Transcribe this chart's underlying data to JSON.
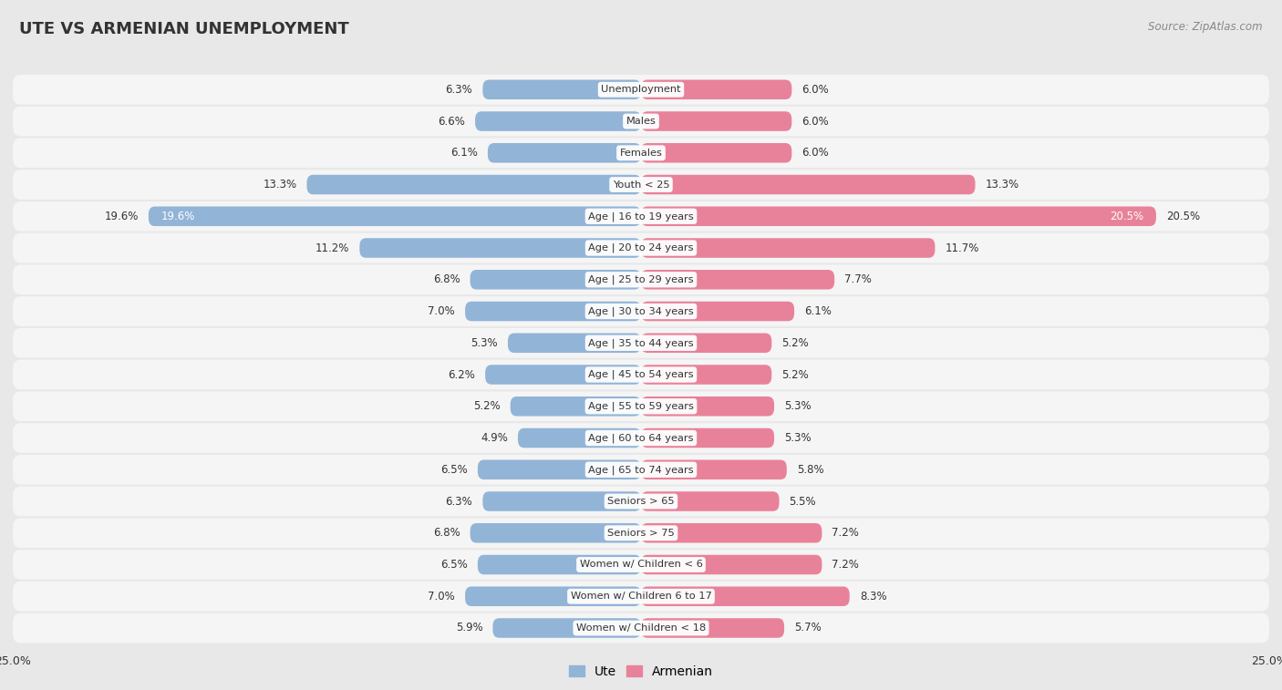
{
  "title": "UTE VS ARMENIAN UNEMPLOYMENT",
  "source": "Source: ZipAtlas.com",
  "categories": [
    "Unemployment",
    "Males",
    "Females",
    "Youth < 25",
    "Age | 16 to 19 years",
    "Age | 20 to 24 years",
    "Age | 25 to 29 years",
    "Age | 30 to 34 years",
    "Age | 35 to 44 years",
    "Age | 45 to 54 years",
    "Age | 55 to 59 years",
    "Age | 60 to 64 years",
    "Age | 65 to 74 years",
    "Seniors > 65",
    "Seniors > 75",
    "Women w/ Children < 6",
    "Women w/ Children 6 to 17",
    "Women w/ Children < 18"
  ],
  "ute_values": [
    6.3,
    6.6,
    6.1,
    13.3,
    19.6,
    11.2,
    6.8,
    7.0,
    5.3,
    6.2,
    5.2,
    4.9,
    6.5,
    6.3,
    6.8,
    6.5,
    7.0,
    5.9
  ],
  "armenian_values": [
    6.0,
    6.0,
    6.0,
    13.3,
    20.5,
    11.7,
    7.7,
    6.1,
    5.2,
    5.2,
    5.3,
    5.3,
    5.8,
    5.5,
    7.2,
    7.2,
    8.3,
    5.7
  ],
  "ute_color": "#92b4d7",
  "armenian_color": "#e8829a",
  "background_color": "#e8e8e8",
  "row_bg_color": "#f5f5f5",
  "xlim": 25.0,
  "legend_ute": "Ute",
  "legend_armenian": "Armenian"
}
